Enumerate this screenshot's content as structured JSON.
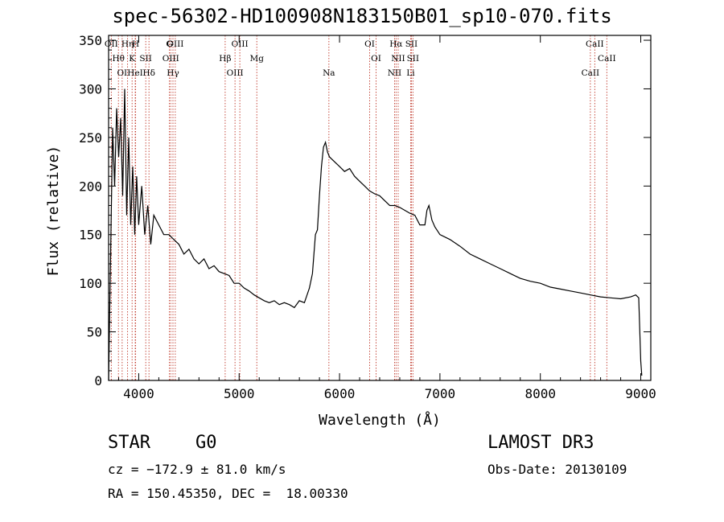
{
  "chart_data": {
    "type": "line",
    "title": "spec-56302-HD100908N183150B01_sp10-070.fits",
    "xlabel": "Wavelength (Å)",
    "ylabel": "Flux (relative)",
    "xlim": [
      3700,
      9100
    ],
    "ylim": [
      0,
      355
    ],
    "xticks": [
      4000,
      5000,
      6000,
      7000,
      8000,
      9000
    ],
    "yticks": [
      0,
      50,
      100,
      150,
      200,
      250,
      300,
      350
    ],
    "series": [
      {
        "name": "flux",
        "x": [
          3700,
          3740,
          3760,
          3780,
          3800,
          3820,
          3840,
          3860,
          3880,
          3900,
          3920,
          3940,
          3960,
          3980,
          4000,
          4030,
          4060,
          4090,
          4120,
          4150,
          4200,
          4250,
          4300,
          4350,
          4400,
          4450,
          4500,
          4550,
          4600,
          4650,
          4700,
          4750,
          4800,
          4850,
          4900,
          4950,
          5000,
          5050,
          5100,
          5150,
          5200,
          5250,
          5300,
          5350,
          5400,
          5450,
          5500,
          5550,
          5600,
          5650,
          5700,
          5730,
          5760,
          5780,
          5800,
          5820,
          5840,
          5860,
          5880,
          5900,
          5950,
          6000,
          6050,
          6100,
          6150,
          6200,
          6250,
          6300,
          6350,
          6400,
          6450,
          6500,
          6550,
          6600,
          6650,
          6700,
          6750,
          6800,
          6850,
          6870,
          6890,
          6920,
          6950,
          7000,
          7100,
          7200,
          7300,
          7400,
          7500,
          7600,
          7700,
          7800,
          7900,
          8000,
          8100,
          8200,
          8300,
          8400,
          8500,
          8600,
          8700,
          8800,
          8900,
          8950,
          8980,
          9000,
          9010
        ],
        "y": [
          0,
          260,
          200,
          280,
          230,
          270,
          190,
          300,
          170,
          250,
          160,
          220,
          150,
          210,
          160,
          200,
          150,
          180,
          140,
          170,
          160,
          150,
          150,
          145,
          140,
          130,
          135,
          125,
          120,
          125,
          115,
          118,
          112,
          110,
          108,
          100,
          100,
          95,
          92,
          88,
          85,
          82,
          80,
          82,
          78,
          80,
          78,
          75,
          82,
          80,
          95,
          110,
          150,
          155,
          190,
          220,
          240,
          245,
          235,
          230,
          225,
          220,
          215,
          218,
          210,
          205,
          200,
          195,
          192,
          190,
          185,
          180,
          180,
          178,
          175,
          172,
          170,
          160,
          160,
          175,
          180,
          165,
          158,
          150,
          145,
          138,
          130,
          125,
          120,
          115,
          110,
          105,
          102,
          100,
          96,
          94,
          92,
          90,
          88,
          86,
          85,
          84,
          86,
          88,
          85,
          20,
          5
        ]
      }
    ],
    "line_markers": [
      {
        "label": "OII",
        "x": 3727
      },
      {
        "label": "Hθ",
        "x": 3798
      },
      {
        "label": "OI",
        "x": 3835
      },
      {
        "label": "Hη",
        "x": 3889
      },
      {
        "label": "K",
        "x": 3934
      },
      {
        "label": "HeI",
        "x": 3965
      },
      {
        "label": "H",
        "x": 3969
      },
      {
        "label": "SII",
        "x": 4070
      },
      {
        "label": "Hδ",
        "x": 4102
      },
      {
        "label": "G",
        "x": 4305
      },
      {
        "label": "OIII",
        "x": 4319
      },
      {
        "label": "Hγ",
        "x": 4341
      },
      {
        "label": "OIII",
        "x": 4364
      },
      {
        "label": "Hβ",
        "x": 4861
      },
      {
        "label": "OIII",
        "x": 4959
      },
      {
        "label": "OIII",
        "x": 5007
      },
      {
        "label": "Mg",
        "x": 5176
      },
      {
        "label": "Na",
        "x": 5894
      },
      {
        "label": "OI",
        "x": 6300
      },
      {
        "label": "OI",
        "x": 6364
      },
      {
        "label": "NII",
        "x": 6548
      },
      {
        "label": "Hα",
        "x": 6563
      },
      {
        "label": "NII",
        "x": 6584
      },
      {
        "label": "Li",
        "x": 6708
      },
      {
        "label": "SII",
        "x": 6716
      },
      {
        "label": "SII",
        "x": 6731
      },
      {
        "label": "CaII",
        "x": 8498
      },
      {
        "label": "CaII",
        "x": 8542
      },
      {
        "label": "CaII",
        "x": 8662
      }
    ]
  },
  "info": {
    "object_class": "STAR",
    "subclass": "G0",
    "survey": "LAMOST DR3",
    "cz": "cz = −172.9 ± 81.0 km/s",
    "obs_date": "Obs-Date: 20130109",
    "coords": "RA = 150.45350, DEC =  18.00330"
  },
  "colors": {
    "line": "#000000",
    "marker": "#c0392b",
    "axis": "#000000"
  }
}
